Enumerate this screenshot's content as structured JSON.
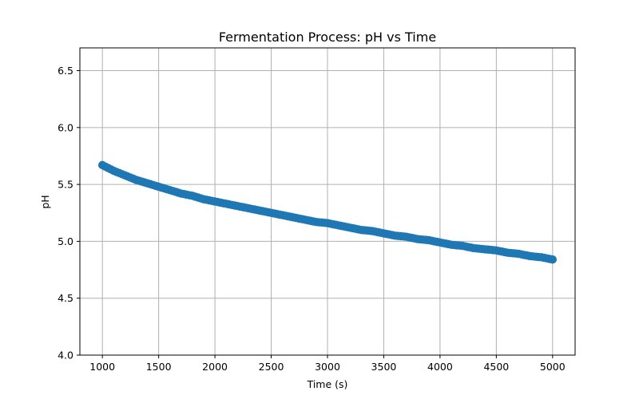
{
  "chart_data": {
    "type": "scatter",
    "title": "Fermentation Process: pH vs Time",
    "xlabel": "Time (s)",
    "ylabel": "pH",
    "xlim": [
      800,
      5200
    ],
    "ylim": [
      4.0,
      6.7
    ],
    "xticks": [
      1000,
      1500,
      2000,
      2500,
      3000,
      3500,
      4000,
      4500,
      5000
    ],
    "yticks": [
      4.0,
      4.5,
      5.0,
      5.5,
      6.0,
      6.5
    ],
    "xtick_labels": [
      "1000",
      "1500",
      "2000",
      "2500",
      "3000",
      "3500",
      "4000",
      "4500",
      "5000"
    ],
    "ytick_labels": [
      "4.0",
      "4.5",
      "5.0",
      "5.5",
      "6.0",
      "6.5"
    ],
    "grid": true,
    "colors": {
      "series": "#1f77b4",
      "grid": "#b0b0b0"
    },
    "series": [
      {
        "x": [
          1000,
          1100,
          1200,
          1300,
          1400,
          1500,
          1600,
          1700,
          1800,
          1900,
          2000,
          2100,
          2200,
          2300,
          2400,
          2500,
          2600,
          2700,
          2800,
          2900,
          3000,
          3100,
          3200,
          3300,
          3400,
          3500,
          3600,
          3700,
          3800,
          3900,
          4000,
          4100,
          4200,
          4300,
          4400,
          4500,
          4600,
          4700,
          4800,
          4900,
          5000
        ],
        "y": [
          5.67,
          5.62,
          5.58,
          5.54,
          5.51,
          5.48,
          5.45,
          5.42,
          5.4,
          5.37,
          5.35,
          5.33,
          5.31,
          5.29,
          5.27,
          5.25,
          5.23,
          5.21,
          5.19,
          5.17,
          5.16,
          5.14,
          5.12,
          5.1,
          5.09,
          5.07,
          5.05,
          5.04,
          5.02,
          5.01,
          4.99,
          4.97,
          4.96,
          4.94,
          4.93,
          4.92,
          4.9,
          4.89,
          4.87,
          4.86,
          4.84
        ]
      }
    ]
  }
}
